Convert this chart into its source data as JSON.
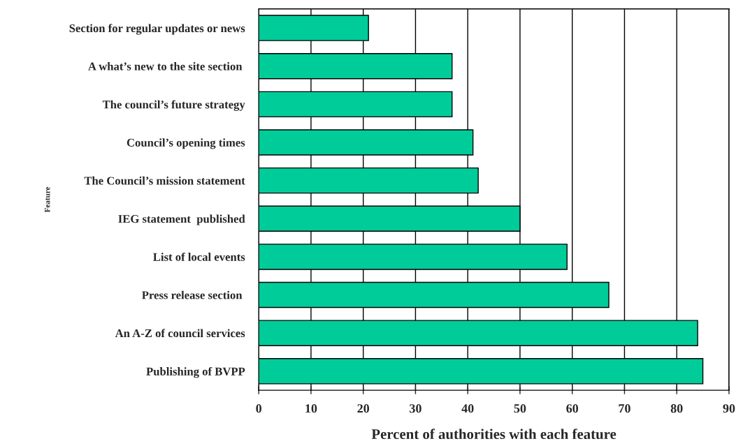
{
  "chart_data": {
    "type": "bar",
    "orientation": "horizontal",
    "xlabel": "Percent of authorities with each feature",
    "ylabel": "Feature",
    "categories": [
      "Section for regular updates or news",
      "A what’s new to the site section ",
      "The council’s future strategy",
      "Council’s opening times",
      "The Council’s mission statement",
      "IEG statement  published",
      "List of local events",
      "Press release section ",
      "An A-Z of council services",
      "Publishing of BVPP"
    ],
    "values": [
      21,
      37,
      37,
      41,
      42,
      50,
      59,
      67,
      84,
      85
    ],
    "color": "#00cc99",
    "xlim": [
      0,
      90
    ],
    "xticks": [
      0,
      10,
      20,
      30,
      40,
      50,
      60,
      70,
      80,
      90
    ],
    "grid": "x",
    "legend": false
  }
}
